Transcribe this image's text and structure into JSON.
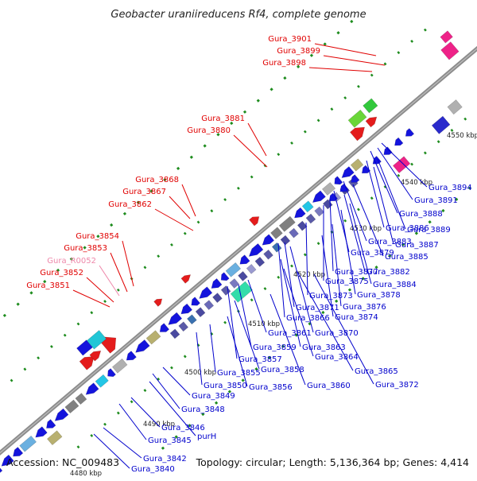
{
  "title": "Geobacter uraniireducens Rf4, complete genome",
  "footer": {
    "accession": "Accession: NC_009483",
    "topology": "Topology: circular; Length: 5,136,364 bp; Genes: 4,414"
  },
  "ruler_labels": [
    "4480 kbp",
    "4490 kbp",
    "4500 kbp",
    "4510 kbp",
    "4520 kbp",
    "4530 kbp",
    "4540 kbp",
    "4550 kbp"
  ],
  "forward_labels": [
    "Gura_3901",
    "Gura_3899",
    "Gura_3898",
    "Gura_3881",
    "Gura_3880",
    "Gura_3868",
    "Gura_3867",
    "Gura_3862",
    "Gura_3854",
    "Gura_3853",
    "Gura_R0052",
    "Gura_3852",
    "Gura_3851"
  ],
  "reverse_labels": [
    "Gura_3894",
    "Gura_3891",
    "Gura_3888",
    "Gura_3889",
    "Gura_3886",
    "Gura_3887",
    "Gura_3883",
    "Gura_3885",
    "Gura_3879",
    "Gura_3882",
    "Gura_3877",
    "Gura_3884",
    "Gura_3875",
    "Gura_3878",
    "Gura_3873",
    "Gura_3876",
    "Gura_3871",
    "Gura_3874",
    "Gura_3866",
    "Gura_3861",
    "Gura_3870",
    "Gura_3863",
    "Gura_3859",
    "Gura_3864",
    "Gura_3857",
    "Gura_3858",
    "Gura_3865",
    "Gura_3855",
    "Gura_3850",
    "Gura_3856",
    "Gura_3860",
    "Gura_3872",
    "Gura_3849",
    "Gura_3848",
    "Gura_3846",
    "Gura_3845",
    "purH",
    "Gura_3842",
    "Gura_3840"
  ],
  "colors": {
    "forward_label": "#e00000",
    "reverse_label": "#0000cc",
    "rna_label": "#ee88aa",
    "backbone": "#888888",
    "gc_marks": "#1e8c1e"
  }
}
